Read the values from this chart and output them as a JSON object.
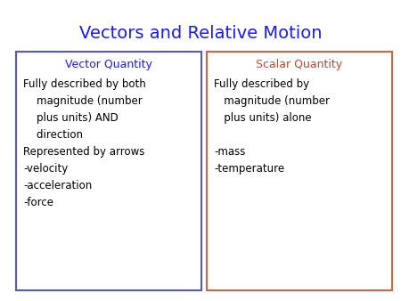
{
  "title": "Vectors and Relative Motion",
  "title_color": "#1a1aff",
  "title_fontsize": 14,
  "bg_color": "#ffffff",
  "left_box": {
    "header": "Vector Quantity",
    "header_color": "#1a1aff",
    "border_color": "#5555cc",
    "content": "Fully described by both\n    magnitude (number\n    plus units) AND\n    direction\nRepresented by arrows\n-velocity\n-acceleration\n-force",
    "content_color": "#000000"
  },
  "right_box": {
    "header": "Scalar Quantity",
    "header_color": "#cc4422",
    "border_color": "#cc6644",
    "content": "Fully described by\n   magnitude (number\n   plus units) alone\n\n-mass\n-temperature",
    "content_color": "#000000"
  },
  "header_fontsize": 9,
  "content_fontsize": 8.5
}
